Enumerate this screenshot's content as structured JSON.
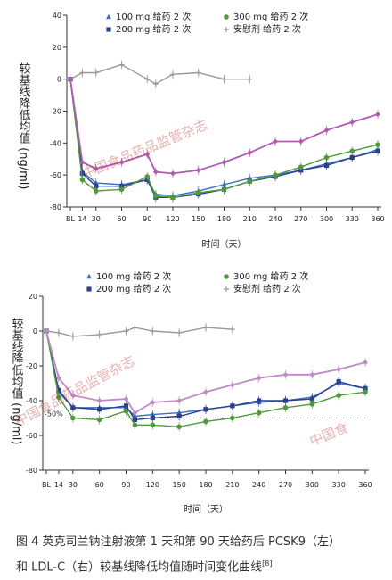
{
  "figure": {
    "caption_line1": "图 4   英克司兰钠注射液第 1 天和第 90 天给药后 PCSK9（左）",
    "caption_line2": "和 LDL-C（右）较基线降低均值随时间变化曲线",
    "caption_ref": "[8]",
    "watermark": "中国食品药品监管杂志"
  },
  "chart_data": [
    {
      "type": "line",
      "title": "",
      "xlabel": "时间（天）",
      "ylabel": "较基线降低均值 (ng/ml)",
      "x_ticks": [
        "BL",
        "14",
        "30",
        "60",
        "90",
        "120",
        "150",
        "180",
        "210",
        "240",
        "270",
        "300",
        "330",
        "360"
      ],
      "y_ticks": [
        "40",
        "20",
        "0",
        "-20",
        "-40",
        "-60",
        "-80"
      ],
      "ylim": [
        -80,
        40
      ],
      "grid": false,
      "legend_placement": "top",
      "colors": {
        "100": "#3b6fc0",
        "200": "#2b3f8a",
        "300": "#4f9a3c",
        "placebo": "#999999"
      },
      "series": [
        {
          "name": "100 mg 给药 2 次",
          "marker": "triangle",
          "x": [
            0,
            14,
            30,
            60,
            90,
            100,
            120,
            150,
            180,
            210,
            240,
            270,
            300,
            330,
            360
          ],
          "y": [
            0,
            -58,
            -65,
            -66,
            -63,
            -72,
            -73,
            -70,
            -66,
            -62,
            -60,
            -57,
            -53,
            -49,
            -44
          ]
        },
        {
          "name": "200 mg 给药 2 次",
          "marker": "square",
          "x": [
            0,
            14,
            30,
            60,
            90,
            100,
            120,
            150,
            180,
            210,
            240,
            270,
            300,
            330,
            360
          ],
          "y": [
            0,
            -59,
            -67,
            -67,
            -63,
            -74,
            -74,
            -72,
            -69,
            -64,
            -61,
            -57,
            -54,
            -49,
            -45
          ]
        },
        {
          "name": "300 mg 给药 2 次",
          "marker": "circle",
          "x": [
            0,
            14,
            30,
            60,
            90,
            100,
            120,
            150,
            180,
            210,
            240,
            270,
            300,
            330,
            360
          ],
          "y": [
            0,
            -63,
            -70,
            -69,
            -61,
            -73,
            -74,
            -71,
            -69,
            -64,
            -60,
            -55,
            -49,
            -45,
            -41
          ]
        },
        {
          "name": "安慰剂 给药 2 次",
          "marker": "plus",
          "x": [
            0,
            14,
            30,
            60,
            90,
            100,
            120,
            150,
            180,
            210
          ],
          "y": [
            0,
            4,
            4,
            9,
            0,
            -3,
            3,
            4,
            0,
            0
          ]
        },
        {
          "name": "",
          "marker": "diamond",
          "color": "#b05ab4",
          "x": [
            0,
            14,
            30,
            60,
            90,
            100,
            120,
            150,
            180,
            210,
            240,
            270,
            300,
            330,
            360
          ],
          "y": [
            0,
            -52,
            -56,
            -52,
            -47,
            -58,
            -59,
            -57,
            -52,
            -46,
            -39,
            -39,
            -32,
            -27,
            -22
          ]
        }
      ]
    },
    {
      "type": "line",
      "title": "",
      "xlabel": "时间（天）",
      "ylabel": "较基线降低均值 (ng/ml)",
      "x_ticks": [
        "BL",
        "14",
        "30",
        "60",
        "90",
        "120",
        "150",
        "180",
        "210",
        "240",
        "270",
        "300",
        "330",
        "360"
      ],
      "y_ticks": [
        "20",
        "0",
        "-20",
        "-40",
        "-60",
        "-80"
      ],
      "ylim": [
        -80,
        20
      ],
      "grid": false,
      "legend_placement": "top",
      "annotation": "-50%",
      "reference_line_y": -50,
      "colors": {
        "100": "#3b6fc0",
        "200": "#2b3f8a",
        "300": "#4f9a3c",
        "placebo": "#999999"
      },
      "series": [
        {
          "name": "100 mg 给药 2 次",
          "marker": "triangle",
          "x": [
            0,
            14,
            30,
            60,
            90,
            100,
            120,
            150,
            180,
            210,
            240,
            270,
            300,
            330,
            360
          ],
          "y": [
            0,
            -35,
            -44,
            -44,
            -44,
            -49,
            -48,
            -47,
            -45,
            -43,
            -41,
            -40,
            -38,
            -30,
            -33
          ]
        },
        {
          "name": "200 mg 给药 2 次",
          "marker": "square",
          "x": [
            0,
            14,
            30,
            60,
            90,
            100,
            120,
            150,
            180,
            210,
            240,
            270,
            300,
            330,
            360
          ],
          "y": [
            0,
            -34,
            -44,
            -45,
            -43,
            -51,
            -50,
            -49,
            -45,
            -43,
            -40,
            -40,
            -39,
            -29,
            -33
          ]
        },
        {
          "name": "300 mg 给药 2 次",
          "marker": "circle",
          "x": [
            0,
            14,
            30,
            60,
            90,
            100,
            120,
            150,
            180,
            210,
            240,
            270,
            300,
            330,
            360
          ],
          "y": [
            0,
            -38,
            -50,
            -51,
            -46,
            -54,
            -54,
            -55,
            -52,
            -50,
            -47,
            -44,
            -42,
            -37,
            -35
          ]
        },
        {
          "name": "安慰剂 给药 2 次",
          "marker": "plus",
          "x": [
            0,
            14,
            30,
            60,
            90,
            100,
            120,
            150,
            180,
            210
          ],
          "y": [
            0,
            -1,
            -3,
            -2,
            0,
            2,
            0,
            -1,
            2,
            1
          ]
        },
        {
          "name": "",
          "marker": "diamond",
          "color": "#c08ac6",
          "x": [
            0,
            14,
            30,
            60,
            90,
            100,
            120,
            150,
            180,
            210,
            240,
            270,
            300,
            330,
            360
          ],
          "y": [
            0,
            -27,
            -37,
            -40,
            -39,
            -47,
            -41,
            -40,
            -35,
            -31,
            -27,
            -25,
            -25,
            -22,
            -18
          ]
        }
      ]
    }
  ]
}
